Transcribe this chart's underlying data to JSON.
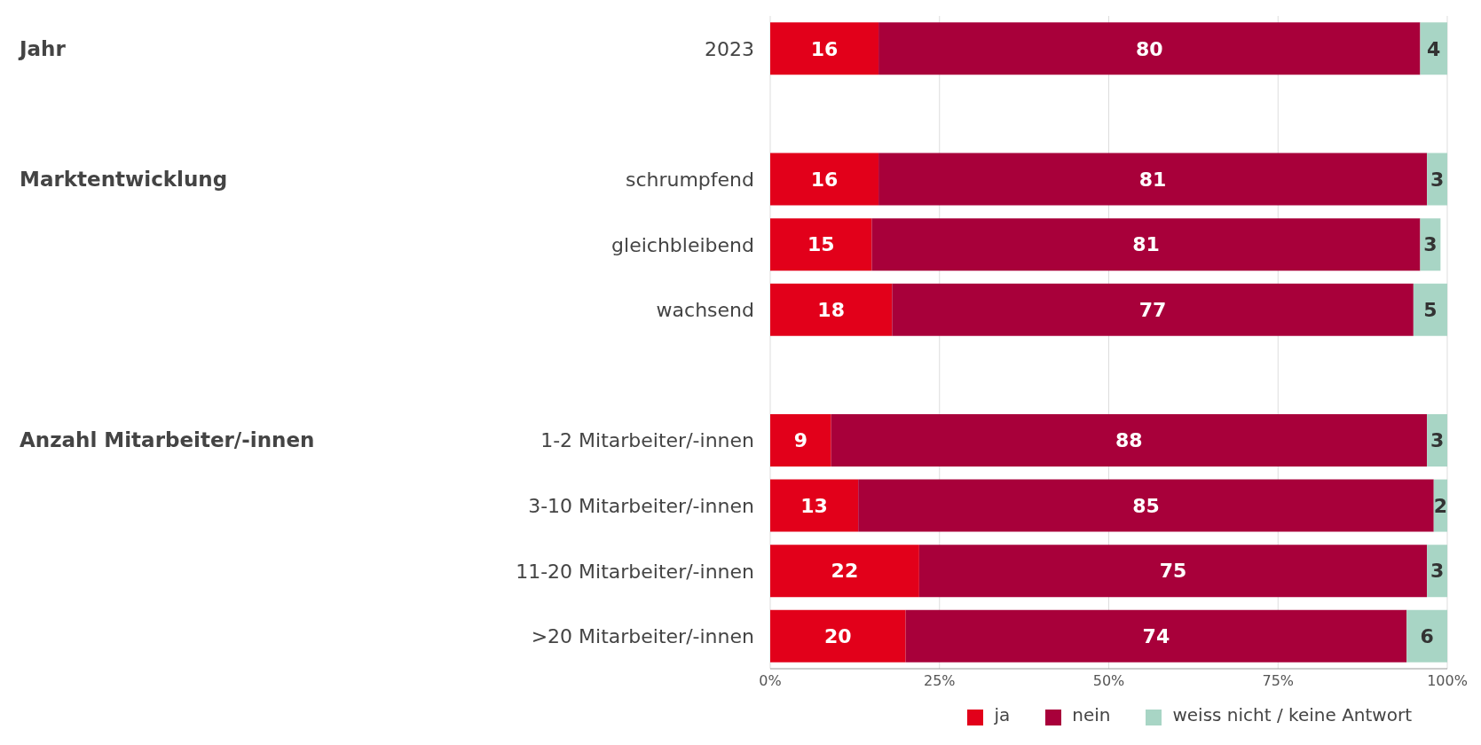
{
  "chart_data": {
    "type": "bar",
    "orientation": "horizontal",
    "stacked": true,
    "data_labels": true,
    "categories": [
      "2023",
      null,
      "schrumpfend",
      "gleichbleibend",
      "wachsend",
      null,
      "1-2 Mitarbeiter/-innen",
      "3-10 Mitarbeiter/-innen",
      "11-20 Mitarbeiter/-innen",
      ">20 Mitarbeiter/-innen"
    ],
    "series": [
      {
        "name": "ja",
        "color": "#e2001a",
        "values": [
          16,
          null,
          16,
          15,
          18,
          null,
          9,
          13,
          22,
          20
        ]
      },
      {
        "name": "nein",
        "color": "#a8003a",
        "values": [
          80,
          null,
          81,
          81,
          77,
          null,
          88,
          85,
          75,
          74
        ]
      },
      {
        "name": "weiss nicht / keine Antwort",
        "color": "#a8d5c5",
        "values": [
          4,
          null,
          3,
          3,
          5,
          null,
          3,
          2,
          3,
          6
        ]
      }
    ],
    "xlim": [
      0,
      100
    ],
    "xticks": [
      {
        "value": 0,
        "label": "0%"
      },
      {
        "value": 25,
        "label": "25%"
      },
      {
        "value": 50,
        "label": "50%"
      },
      {
        "value": 75,
        "label": "75%"
      },
      {
        "value": 100,
        "label": "100%"
      }
    ],
    "grid": "x",
    "legend": "bottom right",
    "annotations": [
      "Jahr",
      "Marktentwicklung",
      "Anzahl Mitarbeiter/-innen"
    ]
  }
}
